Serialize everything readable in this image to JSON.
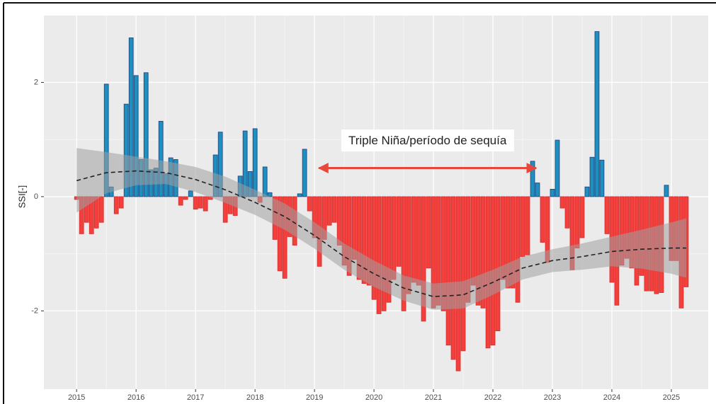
{
  "chart_data": {
    "type": "bar",
    "y_label": "SSI[-]",
    "xlim": [
      2014.45,
      2025.62
    ],
    "ylim": [
      -3.37,
      3.17
    ],
    "xticks": [
      2015,
      2016,
      2017,
      2018,
      2019,
      2020,
      2021,
      2022,
      2023,
      2024,
      2025
    ],
    "yticks": [
      -2,
      0,
      2
    ],
    "grid": true,
    "positive_color": "#1f8fc0",
    "negative_color": "#f2403c",
    "x": [
      2015,
      2015.083,
      2015.167,
      2015.25,
      2015.333,
      2015.417,
      2015.5,
      2015.583,
      2015.667,
      2015.75,
      2015.833,
      2015.917,
      2016,
      2016.083,
      2016.167,
      2016.25,
      2016.333,
      2016.417,
      2016.5,
      2016.583,
      2016.667,
      2016.75,
      2016.833,
      2016.917,
      2017,
      2017.083,
      2017.167,
      2017.25,
      2017.333,
      2017.417,
      2017.5,
      2017.583,
      2017.667,
      2017.75,
      2017.833,
      2017.917,
      2018,
      2018.083,
      2018.167,
      2018.25,
      2018.333,
      2018.417,
      2018.5,
      2018.583,
      2018.667,
      2018.75,
      2018.833,
      2018.917,
      2019,
      2019.083,
      2019.167,
      2019.25,
      2019.333,
      2019.417,
      2019.5,
      2019.583,
      2019.667,
      2019.75,
      2019.833,
      2019.917,
      2020,
      2020.083,
      2020.167,
      2020.25,
      2020.333,
      2020.417,
      2020.5,
      2020.583,
      2020.667,
      2020.75,
      2020.833,
      2020.917,
      2021,
      2021.083,
      2021.167,
      2021.25,
      2021.333,
      2021.417,
      2021.5,
      2021.583,
      2021.667,
      2021.75,
      2021.833,
      2021.917,
      2022,
      2022.083,
      2022.167,
      2022.25,
      2022.333,
      2022.417,
      2022.5,
      2022.583,
      2022.667,
      2022.75,
      2022.833,
      2022.917,
      2023,
      2023.083,
      2023.167,
      2023.25,
      2023.333,
      2023.417,
      2023.5,
      2023.583,
      2023.667,
      2023.75,
      2023.833,
      2023.917,
      2024,
      2024.083,
      2024.167,
      2024.25,
      2024.333,
      2024.417,
      2024.5,
      2024.583,
      2024.667,
      2024.75,
      2024.833,
      2024.917,
      2025,
      2025.083,
      2025.167,
      2025.25
    ],
    "values": [
      -0.05,
      -0.65,
      -0.45,
      -0.65,
      -0.55,
      -0.45,
      1.97,
      0.17,
      -0.3,
      -0.2,
      1.62,
      2.78,
      2.12,
      0.65,
      2.17,
      0.47,
      0.5,
      1.32,
      0.4,
      0.68,
      0.65,
      -0.15,
      -0.05,
      0.1,
      -0.22,
      -0.2,
      -0.25,
      -0.05,
      0.73,
      1.13,
      -0.45,
      -0.3,
      -0.33,
      0.36,
      1.15,
      0.44,
      1.19,
      -0.1,
      0.52,
      0.07,
      -0.75,
      -1.3,
      -1.43,
      -0.7,
      -0.85,
      0.05,
      0.83,
      -0.25,
      -0.72,
      -1.22,
      -0.75,
      -0.5,
      -0.45,
      -0.85,
      -1.2,
      -1.38,
      -1.1,
      -1.45,
      -1.52,
      -1.55,
      -1.8,
      -2.05,
      -2.0,
      -1.85,
      -1.45,
      -1.22,
      -2.0,
      -1.7,
      -1.5,
      -1.55,
      -2.18,
      -1.25,
      -1.95,
      -1.9,
      -2.0,
      -2.6,
      -2.85,
      -3.05,
      -2.7,
      -1.85,
      -1.55,
      -1.9,
      -1.95,
      -2.65,
      -2.6,
      -2.35,
      -1.45,
      -1.6,
      -1.6,
      -1.85,
      -1.05,
      -1.02,
      0.62,
      0.24,
      -0.8,
      -1.15,
      0.13,
      0.99,
      -0.2,
      -0.55,
      -1.28,
      -0.9,
      -0.72,
      0.17,
      0.69,
      2.89,
      0.64,
      -0.65,
      -1.5,
      -1.9,
      -1.2,
      -1.08,
      -1.25,
      -1.55,
      -1.38,
      -1.65,
      -1.65,
      -1.7,
      -1.68,
      0.2,
      -1.12,
      -1.12,
      -1.95,
      -1.58
    ],
    "smooth": {
      "color": "#222222",
      "band_color": "#a0a0a0",
      "x": [
        2015,
        2015.5,
        2016,
        2016.5,
        2017,
        2017.5,
        2018,
        2018.5,
        2019,
        2019.5,
        2020,
        2020.5,
        2021,
        2021.5,
        2022,
        2022.5,
        2023,
        2023.5,
        2024,
        2024.5,
        2025,
        2025.25
      ],
      "values": [
        0.28,
        0.42,
        0.45,
        0.42,
        0.3,
        0.12,
        -0.1,
        -0.35,
        -0.68,
        -1.05,
        -1.35,
        -1.6,
        -1.75,
        -1.72,
        -1.5,
        -1.25,
        -1.12,
        -1.05,
        -0.96,
        -0.92,
        -0.9,
        -0.9
      ],
      "upper": [
        0.85,
        0.78,
        0.7,
        0.62,
        0.52,
        0.35,
        0.12,
        -0.12,
        -0.45,
        -0.82,
        -1.12,
        -1.38,
        -1.52,
        -1.48,
        -1.28,
        -1.05,
        -0.92,
        -0.82,
        -0.7,
        -0.58,
        -0.45,
        -0.38
      ],
      "lower": [
        -0.28,
        0.06,
        0.2,
        0.22,
        0.08,
        -0.11,
        -0.32,
        -0.58,
        -0.91,
        -1.28,
        -1.58,
        -1.82,
        -1.98,
        -1.96,
        -1.72,
        -1.45,
        -1.32,
        -1.28,
        -1.22,
        -1.26,
        -1.35,
        -1.42
      ]
    },
    "annotation": {
      "text": "Triple Niña/período de sequía",
      "x_start": 2019.05,
      "x_end": 2022.75,
      "y": 0.5,
      "color": "#e8473c"
    }
  }
}
